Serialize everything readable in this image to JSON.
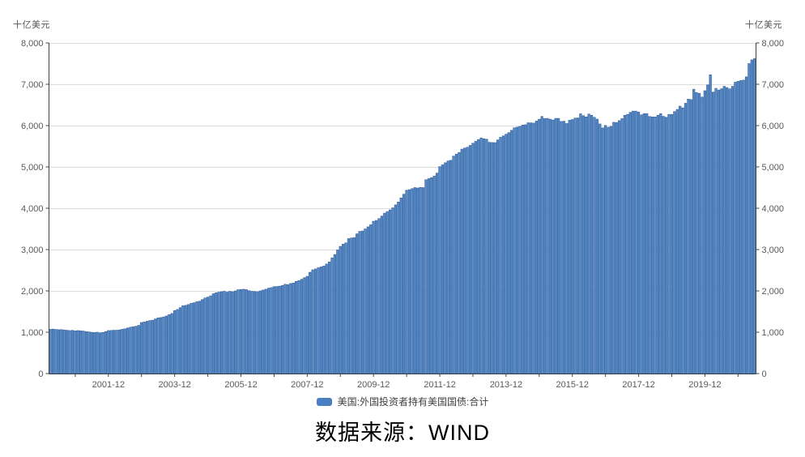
{
  "caption": "数据来源：WIND",
  "chart_data": {
    "type": "bar",
    "title": "",
    "unit_left": "十亿美元",
    "unit_right": "十亿美元",
    "legend": "美国:外国投资者持有美国国债:合计",
    "legend_position": "bottom",
    "grid": true,
    "ylim": [
      0,
      8000
    ],
    "y_tick_step": 1000,
    "y_ticks": [
      0,
      1000,
      2000,
      3000,
      4000,
      5000,
      6000,
      7000,
      8000
    ],
    "x_tick_labels": [
      "2001-12",
      "2003-12",
      "2005-12",
      "2007-12",
      "2009-12",
      "2011-12",
      "2013-12",
      "2015-12",
      "2017-12",
      "2019-12"
    ],
    "colors": {
      "bar_fill": "#5589c8",
      "bar_border": "#2e5d99",
      "grid_line": "#dcdcdc",
      "axis_line": "#404040",
      "tick_text": "#595959",
      "legend_swatch": "#4a80c2"
    },
    "series": [
      {
        "name": "美国:外国投资者持有美国国债:合计",
        "frequency": "monthly",
        "start_month": "2000-03",
        "end_month": "2021-06",
        "values": [
          1071,
          1075,
          1068,
          1060,
          1063,
          1055,
          1048,
          1040,
          1045,
          1034,
          1040,
          1035,
          1029,
          1015,
          1008,
          998,
          992,
          1000,
          983,
          995,
          1015,
          1040,
          1043,
          1048,
          1049,
          1057,
          1070,
          1083,
          1103,
          1120,
          1133,
          1144,
          1166,
          1235,
          1247,
          1265,
          1282,
          1290,
          1320,
          1347,
          1355,
          1370,
          1392,
          1425,
          1455,
          1523,
          1550,
          1595,
          1640,
          1650,
          1670,
          1700,
          1712,
          1737,
          1750,
          1790,
          1830,
          1849,
          1880,
          1930,
          1955,
          1970,
          1980,
          1990,
          1970,
          1990,
          1980,
          2000,
          2030,
          2034,
          2040,
          2030,
          2005,
          1990,
          1985,
          1980,
          2000,
          2020,
          2040,
          2065,
          2080,
          2103,
          2105,
          2115,
          2130,
          2160,
          2150,
          2180,
          2190,
          2230,
          2250,
          2280,
          2320,
          2353,
          2450,
          2510,
          2530,
          2560,
          2580,
          2600,
          2650,
          2700,
          2800,
          2880,
          2990,
          3077,
          3130,
          3162,
          3265,
          3280,
          3290,
          3380,
          3440,
          3450,
          3500,
          3550,
          3600,
          3685,
          3705,
          3750,
          3810,
          3880,
          3920,
          3960,
          4010,
          4080,
          4150,
          4250,
          4340,
          4435,
          4450,
          4475,
          4500,
          4490,
          4505,
          4499,
          4690,
          4715,
          4740,
          4780,
          4850,
          5007,
          5050,
          5100,
          5145,
          5160,
          5260,
          5310,
          5350,
          5430,
          5455,
          5476,
          5520,
          5573,
          5620,
          5660,
          5700,
          5680,
          5670,
          5595,
          5590,
          5588,
          5653,
          5717,
          5750,
          5792,
          5830,
          5885,
          5948,
          5962,
          5980,
          6013,
          6020,
          6068,
          6066,
          6060,
          6110,
          6154,
          6220,
          6170,
          6175,
          6155,
          6135,
          6175,
          6175,
          6100,
          6105,
          6050,
          6130,
          6146,
          6180,
          6185,
          6285,
          6240,
          6210,
          6280,
          6250,
          6200,
          6155,
          6040,
          5945,
          6004,
          5960,
          5980,
          6080,
          6075,
          6120,
          6170,
          6250,
          6270,
          6320,
          6350,
          6350,
          6330,
          6260,
          6290,
          6290,
          6220,
          6210,
          6210,
          6250,
          6290,
          6225,
          6200,
          6270,
          6270,
          6340,
          6390,
          6470,
          6430,
          6540,
          6640,
          6630,
          6880,
          6800,
          6780,
          6690,
          6844,
          6984,
          7230,
          6810,
          6900,
          6860,
          6890,
          6950,
          6920,
          6890,
          6950,
          7050,
          7071,
          7090,
          7100,
          7180,
          7500,
          7590,
          7620
        ]
      }
    ]
  }
}
